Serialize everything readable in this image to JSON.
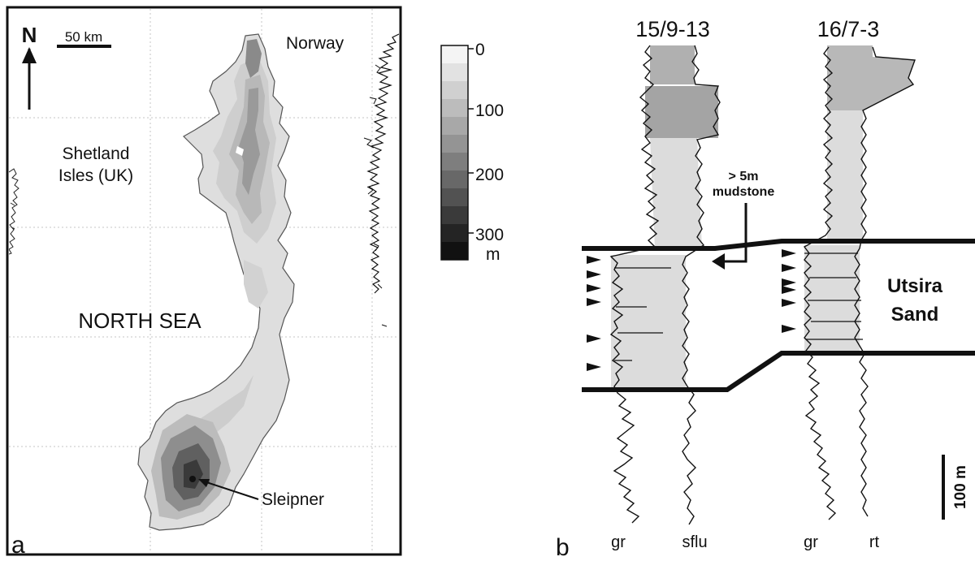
{
  "panel_a": {
    "letter": "a",
    "north": "N",
    "scalebar": "50 km",
    "labels": {
      "norway": "Norway",
      "shetland_line1": "Shetland",
      "shetland_line2": "Isles (UK)",
      "north_sea": "NORTH SEA",
      "sleipner": "Sleipner"
    },
    "legend": {
      "ticks": [
        "0",
        "100",
        "200",
        "300"
      ],
      "unit": "m"
    }
  },
  "panel_b": {
    "letter": "b",
    "wells": [
      {
        "name": "15/9-13",
        "log_left": "gr",
        "log_right": "sflu"
      },
      {
        "name": "16/7-3",
        "log_left": "gr",
        "log_right": "rt"
      }
    ],
    "mudstone_line1": "> 5m",
    "mudstone_line2": "mudstone",
    "unit_line1": "Utsira",
    "unit_line2": "Sand",
    "scale": "100 m"
  },
  "colors": {
    "frame": "#111111",
    "sand_fill": "#dcdcdc",
    "mud_fill": "#a8a8a8",
    "grid": "#bdbdbd"
  }
}
